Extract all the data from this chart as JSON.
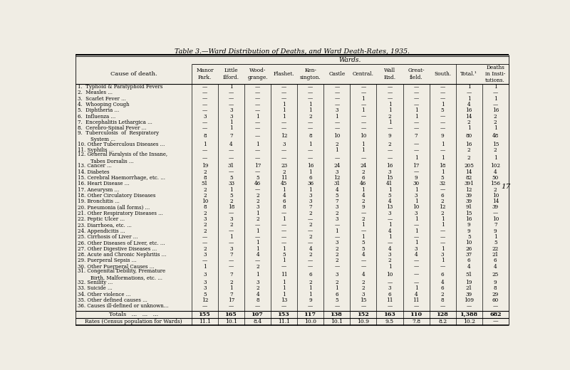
{
  "title": "Table 3.—Ward Distribution of Deaths, and Ward Death-Rates, 1935.",
  "bg_color": "#f0ede4",
  "text_color": "#1a1a1a",
  "col_headers": [
    "Manor\nPark.",
    "Little\nIlford.",
    "Wood-\ngrange.",
    "Plashet.",
    "Ken-\nsington.",
    "Castle",
    "Central.",
    "Wall\nEnd.",
    "Great-\nfield.",
    "South.",
    "Total.¹",
    "Deaths\nin Insti-\ntutions."
  ],
  "causes": [
    "1.  Typhoid & Paratyphoid Fevers",
    "2.  Measles ...",
    "3.  Scarlet Fever ...",
    "4.  Whooping Cough",
    "5.  Diphtheria ...",
    "6.  Influenza ...",
    "7.  Encephalitis Lethargica ...",
    "8.  Cerebro-Spinal Fever ...",
    "9.  Tuberculosis  of  Respiratory\n        System ...",
    "10. Other Tuberculous Diseases ...",
    "11. Syphilis ...",
    "12. General Paralysis of the Insane,\n        Tabes Dorsalis ...",
    "13. Cancer ...",
    "14. Diabetes",
    "15. Cerebral Haemorrhage, etc. ...",
    "16. Heart Disease ...",
    "17. Aneurysm ...",
    "18. Other Circulatory Diseases",
    "19. Bronchitis ...",
    "20. Pneumonia (all forms) ...",
    "21. Other Respiratory Diseases ...",
    "22. Peptic Ulcer ...",
    "23. Diarrhoea, etc. ...",
    "24. Appendicitis ...",
    "25. Cirrhosis of Liver ...",
    "26. Other Diseases of Liver, etc. ...",
    "27. Other Digestive Diseases ...",
    "28. Acute and Chronic Nephritis ...",
    "29. Puerperal Sepsis ...",
    "30. Other Puerperal Causes ...",
    "31. Congenital Debility, Premature\n        Birth, Malformations, etc. ...",
    "32. Senility ...",
    "33. Suicide ...",
    "34. Other violence ...",
    "35. Other defined causes ...",
    "36. Causes ill-defined or unknown..."
  ],
  "data": [
    [
      "—",
      "1",
      "—",
      "—",
      "—",
      "—",
      "—",
      "—",
      "—",
      "—",
      "1",
      "1"
    ],
    [
      "—",
      "—",
      "—",
      "—",
      "—",
      "—",
      "—",
      "—",
      "—",
      "—",
      "—",
      "—"
    ],
    [
      "—",
      "—",
      "—",
      "—",
      "—",
      "—",
      "1",
      "—",
      "—",
      "—",
      "1",
      "1"
    ],
    [
      "—",
      "—",
      "—",
      "1",
      "1",
      "—",
      "—",
      "1",
      "—",
      "1",
      "4",
      "—"
    ],
    [
      "—",
      "3",
      "—",
      "1",
      "1",
      "3",
      "1",
      "1",
      "1",
      "5",
      "16",
      "16"
    ],
    [
      "3",
      "3",
      "1",
      "1",
      "2",
      "1",
      "—",
      "2",
      "1",
      "—",
      "14",
      "2"
    ],
    [
      "—",
      "1",
      "—",
      "—",
      "—",
      "—",
      "—",
      "1",
      "—",
      "—",
      "2",
      "2"
    ],
    [
      "—",
      "1",
      "—",
      "—",
      "—",
      "—",
      "—",
      "—",
      "—",
      "—",
      "1",
      "1"
    ],
    [
      "8",
      "7",
      "—",
      "12",
      "8",
      "10",
      "10",
      "9",
      "7",
      "9",
      "80",
      "48"
    ],
    [
      "1",
      "4",
      "1",
      "3",
      "1",
      "2",
      "1",
      "2",
      "—",
      "1",
      "16",
      "15"
    ],
    [
      "—",
      "—",
      "—",
      "—",
      "—",
      "1",
      "1",
      "—",
      "—",
      "—",
      "2",
      "2"
    ],
    [
      "—",
      "—",
      "—",
      "—",
      "—",
      "—",
      "—",
      "—",
      "1",
      "1",
      "2",
      "1"
    ],
    [
      "19",
      "31",
      "17",
      "23",
      "16",
      "24",
      "24",
      "16",
      "17",
      "18",
      "205",
      "102"
    ],
    [
      "2",
      "—",
      "—",
      "2",
      "1",
      "3",
      "2",
      "3",
      "—",
      "1",
      "14",
      "4"
    ],
    [
      "8",
      "5",
      "5",
      "11",
      "6",
      "12",
      "6",
      "15",
      "9",
      "5",
      "82",
      "50"
    ],
    [
      "51",
      "33",
      "46",
      "45",
      "36",
      "31",
      "46",
      "41",
      "30",
      "32",
      "391",
      "156"
    ],
    [
      "2",
      "1",
      "—",
      "1",
      "1",
      "4",
      "1",
      "1",
      "1",
      "—",
      "12",
      "2"
    ],
    [
      "2",
      "5",
      "2",
      "4",
      "3",
      "5",
      "4",
      "5",
      "3",
      "6",
      "39",
      "10"
    ],
    [
      "10",
      "2",
      "2",
      "6",
      "3",
      "7",
      "2",
      "4",
      "1",
      "2",
      "39",
      "14"
    ],
    [
      "8",
      "18",
      "3",
      "8",
      "7",
      "3",
      "9",
      "13",
      "10",
      "12",
      "91",
      "39"
    ],
    [
      "2",
      "—",
      "1",
      "—",
      "2",
      "2",
      "—",
      "3",
      "3",
      "2",
      "15",
      "—"
    ],
    [
      "3",
      "3",
      "2",
      "1",
      "—",
      "3",
      "2",
      "—",
      "1",
      "1",
      "16",
      "10"
    ],
    [
      "2",
      "2",
      "—",
      "—",
      "2",
      "—",
      "1",
      "1",
      "—",
      "1",
      "9",
      "7"
    ],
    [
      "2",
      "—",
      "1",
      "—",
      "—",
      "1",
      "—",
      "4",
      "1",
      "—",
      "9",
      "9"
    ],
    [
      "—",
      "1",
      "—",
      "—",
      "2",
      "—",
      "1",
      "1",
      "—",
      "—",
      "5",
      "1"
    ],
    [
      "—",
      "—",
      "1",
      "—",
      "—",
      "3",
      "5",
      "—",
      "1",
      "—",
      "10",
      "5"
    ],
    [
      "2",
      "3",
      "1",
      "1",
      "4",
      "2",
      "5",
      "4",
      "3",
      "1",
      "26",
      "22"
    ],
    [
      "3",
      "7",
      "4",
      "5",
      "2",
      "2",
      "4",
      "3",
      "4",
      "3",
      "37",
      "21"
    ],
    [
      "—",
      "—",
      "—",
      "1",
      "—",
      "2",
      "—",
      "2",
      "—",
      "1",
      "6",
      "6"
    ],
    [
      "1",
      "—",
      "2",
      "—",
      "—",
      "—",
      "—",
      "1",
      "—",
      "—",
      "4",
      "4"
    ],
    [
      "3",
      "7",
      "1",
      "11",
      "6",
      "3",
      "4",
      "10",
      "—",
      "6",
      "51",
      "25"
    ],
    [
      "3",
      "2",
      "3",
      "1",
      "2",
      "2",
      "2",
      "—",
      "—",
      "4",
      "19",
      "9"
    ],
    [
      "3",
      "1",
      "2",
      "1",
      "1",
      "1",
      "2",
      "3",
      "1",
      "6",
      "21",
      "8"
    ],
    [
      "5",
      "7",
      "4",
      "1",
      "1",
      "6",
      "3",
      "6",
      "4",
      "2",
      "39",
      "29"
    ],
    [
      "12",
      "17",
      "8",
      "13",
      "9",
      "5",
      "15",
      "11",
      "11",
      "8",
      "109",
      "60"
    ],
    [
      "—",
      "—",
      "—",
      "—",
      "—",
      "—",
      "—",
      "—",
      "—",
      "—",
      "—",
      "—"
    ]
  ],
  "totals_row": [
    "155",
    "165",
    "107",
    "153",
    "117",
    "138",
    "152",
    "163",
    "110",
    "128",
    "1,388",
    "682"
  ],
  "rates_row": [
    "11.1",
    "10.1",
    "8.4",
    "11.1",
    "10.0",
    "10.1",
    "10.9",
    "9.5",
    "7.8",
    "8.2",
    "10.2",
    "—"
  ],
  "page_number": "17"
}
